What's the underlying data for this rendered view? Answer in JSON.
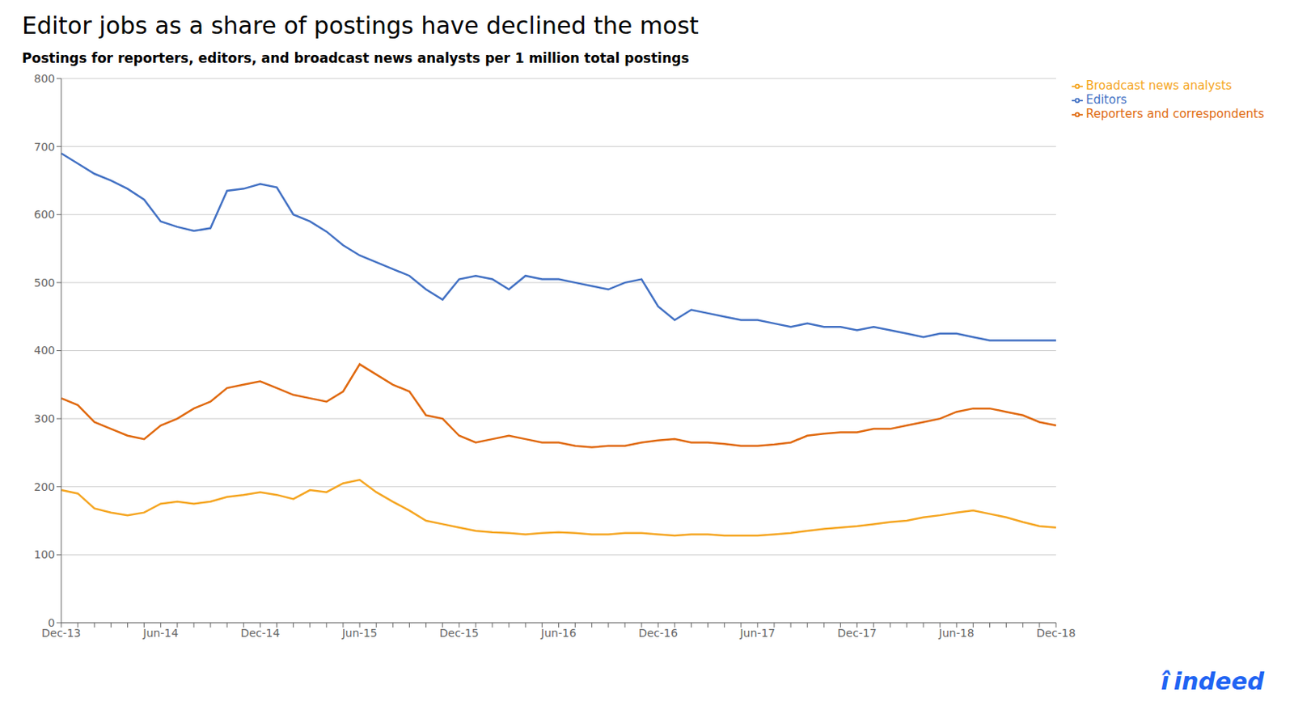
{
  "chart_data": {
    "type": "line",
    "title": "Editor jobs as a share of postings have declined the most",
    "subtitle": "Postings for reporters, editors, and broadcast news analysts per 1 million total postings",
    "categories": [
      "Dec-13",
      null,
      null,
      null,
      null,
      null,
      "Jun-14",
      null,
      null,
      null,
      null,
      null,
      "Dec-14",
      null,
      null,
      null,
      null,
      null,
      "Jun-15",
      null,
      null,
      null,
      null,
      null,
      "Dec-15",
      null,
      null,
      null,
      null,
      null,
      "Jun-16",
      null,
      null,
      null,
      null,
      null,
      "Dec-16",
      null,
      null,
      null,
      null,
      null,
      "Jun-17",
      null,
      null,
      null,
      null,
      null,
      "Dec-17",
      null,
      null,
      null,
      null,
      null,
      "Jun-18",
      null,
      null,
      null,
      null,
      null,
      "Dec-18"
    ],
    "series": [
      {
        "name": "Editors",
        "color": "#4472c4",
        "values": [
          690,
          675,
          660,
          650,
          638,
          622,
          590,
          582,
          576,
          580,
          635,
          638,
          645,
          640,
          600,
          590,
          575,
          555,
          540,
          530,
          520,
          510,
          490,
          475,
          505,
          510,
          505,
          490,
          510,
          505,
          505,
          500,
          495,
          490,
          500,
          505,
          465,
          445,
          460,
          455,
          450,
          445,
          445,
          440,
          435,
          440,
          435,
          435,
          430,
          435,
          430,
          425,
          420,
          425,
          425,
          420,
          415,
          415,
          415,
          415,
          415
        ]
      },
      {
        "name": "Reporters and correspondents",
        "color": "#e06a10",
        "values": [
          330,
          320,
          295,
          285,
          275,
          270,
          290,
          300,
          315,
          325,
          345,
          350,
          355,
          345,
          335,
          330,
          325,
          340,
          380,
          365,
          350,
          340,
          305,
          300,
          275,
          265,
          270,
          275,
          270,
          265,
          265,
          260,
          258,
          260,
          260,
          265,
          268,
          270,
          265,
          265,
          263,
          260,
          260,
          262,
          265,
          275,
          278,
          280,
          280,
          285,
          285,
          290,
          295,
          300,
          310,
          315,
          315,
          310,
          305,
          295,
          290
        ]
      },
      {
        "name": "Broadcast news analysts",
        "color": "#f5a623",
        "values": [
          195,
          190,
          168,
          162,
          158,
          162,
          175,
          178,
          175,
          178,
          185,
          188,
          192,
          188,
          182,
          195,
          192,
          205,
          210,
          192,
          178,
          165,
          150,
          145,
          140,
          135,
          133,
          132,
          130,
          132,
          133,
          132,
          130,
          130,
          132,
          132,
          130,
          128,
          130,
          130,
          128,
          128,
          128,
          130,
          132,
          135,
          138,
          140,
          142,
          145,
          148,
          150,
          155,
          158,
          162,
          165,
          160,
          155,
          148,
          142,
          140
        ]
      }
    ],
    "ylim": [
      0,
      800
    ],
    "yticks": [
      0,
      100,
      200,
      300,
      400,
      500,
      600,
      700,
      800
    ],
    "grid": true,
    "legend": "upper right",
    "annotations": [
      "î",
      "indeed"
    ]
  }
}
